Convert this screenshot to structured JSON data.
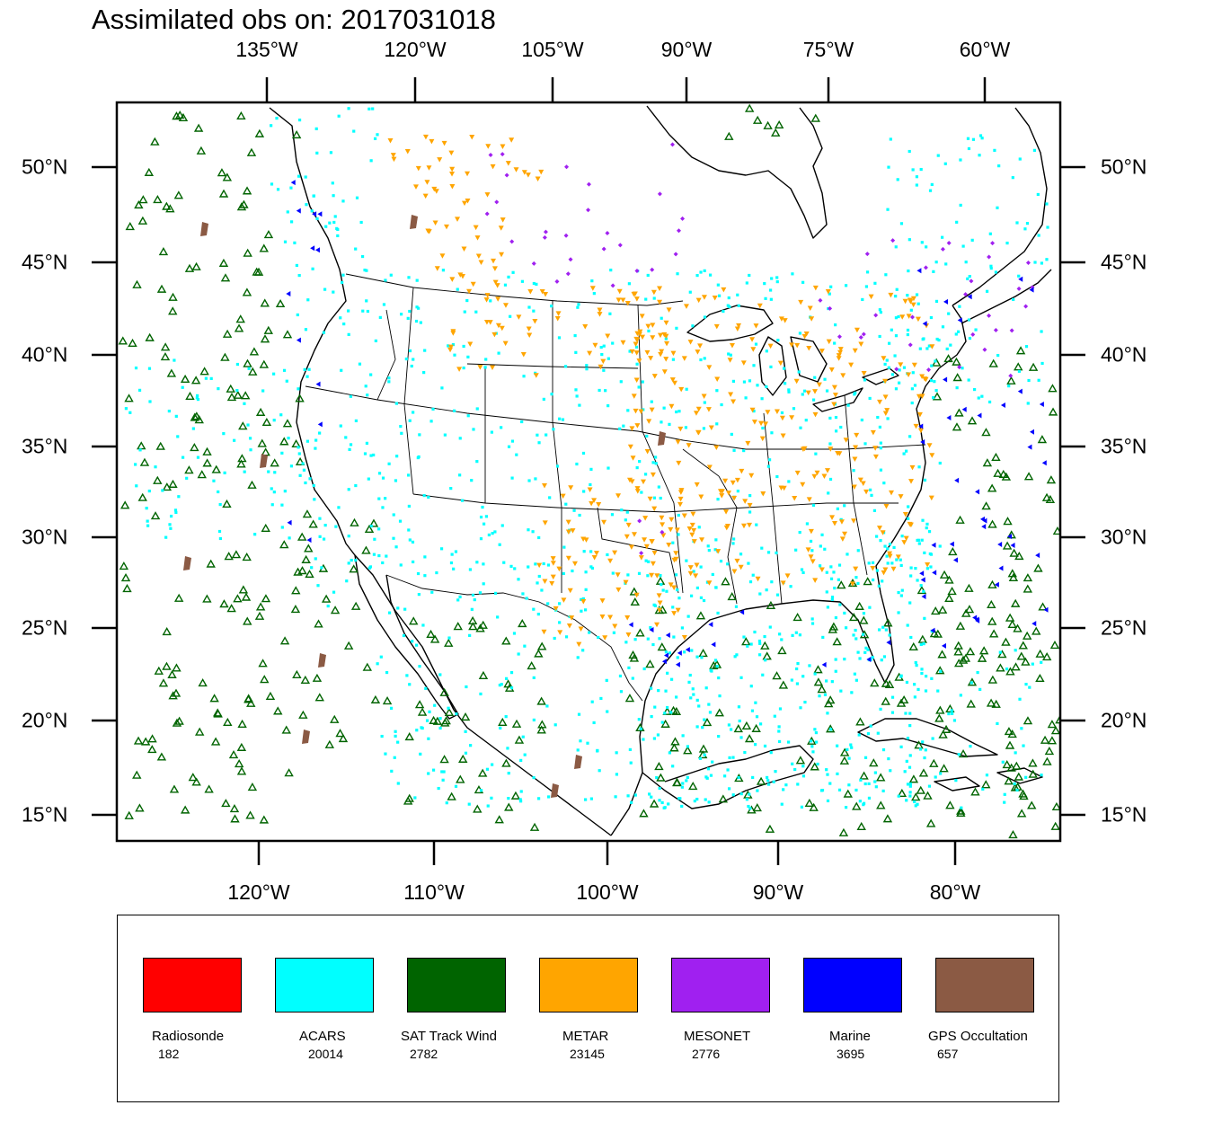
{
  "title": "Assimilated obs on: 2017031018",
  "axes": {
    "top_lon": [
      "135°W",
      "120°W",
      "105°W",
      "90°W",
      "75°W",
      "60°W"
    ],
    "bottom_lon": [
      "120°W",
      "110°W",
      "100°W",
      "90°W",
      "80°W"
    ],
    "lat": [
      "50°N",
      "45°N",
      "40°N",
      "35°N",
      "30°N",
      "25°N",
      "20°N",
      "15°N"
    ]
  },
  "legend": [
    {
      "name": "Radiosonde",
      "count": "182",
      "color": "#ff0000"
    },
    {
      "name": "ACARS",
      "count": "20014",
      "color": "#00ffff"
    },
    {
      "name": "SAT Track Wind",
      "count": "2782",
      "color": "#006400"
    },
    {
      "name": "METAR",
      "count": "23145",
      "color": "#ffa500"
    },
    {
      "name": "MESONET",
      "count": "2776",
      "color": "#a020f0"
    },
    {
      "name": "Marine",
      "count": "3695",
      "color": "#0000ff"
    },
    {
      "name": "GPS Occultation",
      "count": "657",
      "color": "#8b5a44"
    }
  ]
}
